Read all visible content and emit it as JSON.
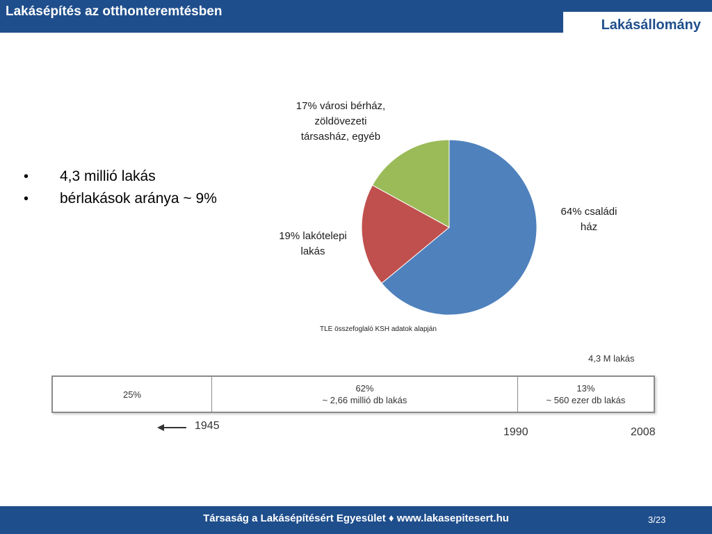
{
  "header": {
    "title": "Lakásépítés az otthonteremtésben",
    "section": "Lakásállomány"
  },
  "bullets": [
    "4,3 millió lakás",
    "bérlakások aránya ~ 9%"
  ],
  "chart_data": [
    {
      "type": "pie",
      "slices": [
        {
          "label_lines": [
            "64% családi",
            "ház"
          ],
          "value": 64,
          "color": "#4f81bd"
        },
        {
          "label_lines": [
            "19% lakótelepi",
            "lakás"
          ],
          "value": 19,
          "color": "#c0504d"
        },
        {
          "label_lines": [
            "17% városi bérház,",
            "zöldövezeti",
            "társasház, egyéb"
          ],
          "value": 17,
          "color": "#9bbb59"
        }
      ],
      "source": "TLE összefoglaló KSH adatok alapján"
    },
    {
      "type": "table",
      "total_label": "4,3 M lakás",
      "segments": [
        {
          "lines": [
            "25%"
          ],
          "value": 25
        },
        {
          "lines": [
            "62%",
            "~ 2,66 millió db lakás"
          ],
          "value": 62
        },
        {
          "lines": [
            "13%",
            "~ 560 ezer db lakás"
          ],
          "value": 13
        }
      ],
      "years": [
        "1945",
        "1990",
        "2008"
      ]
    }
  ],
  "footer": {
    "text": "Társaság a Lakásépítésért Egyesület ♦ www.lakasepitesert.hu",
    "page": "3/23"
  }
}
